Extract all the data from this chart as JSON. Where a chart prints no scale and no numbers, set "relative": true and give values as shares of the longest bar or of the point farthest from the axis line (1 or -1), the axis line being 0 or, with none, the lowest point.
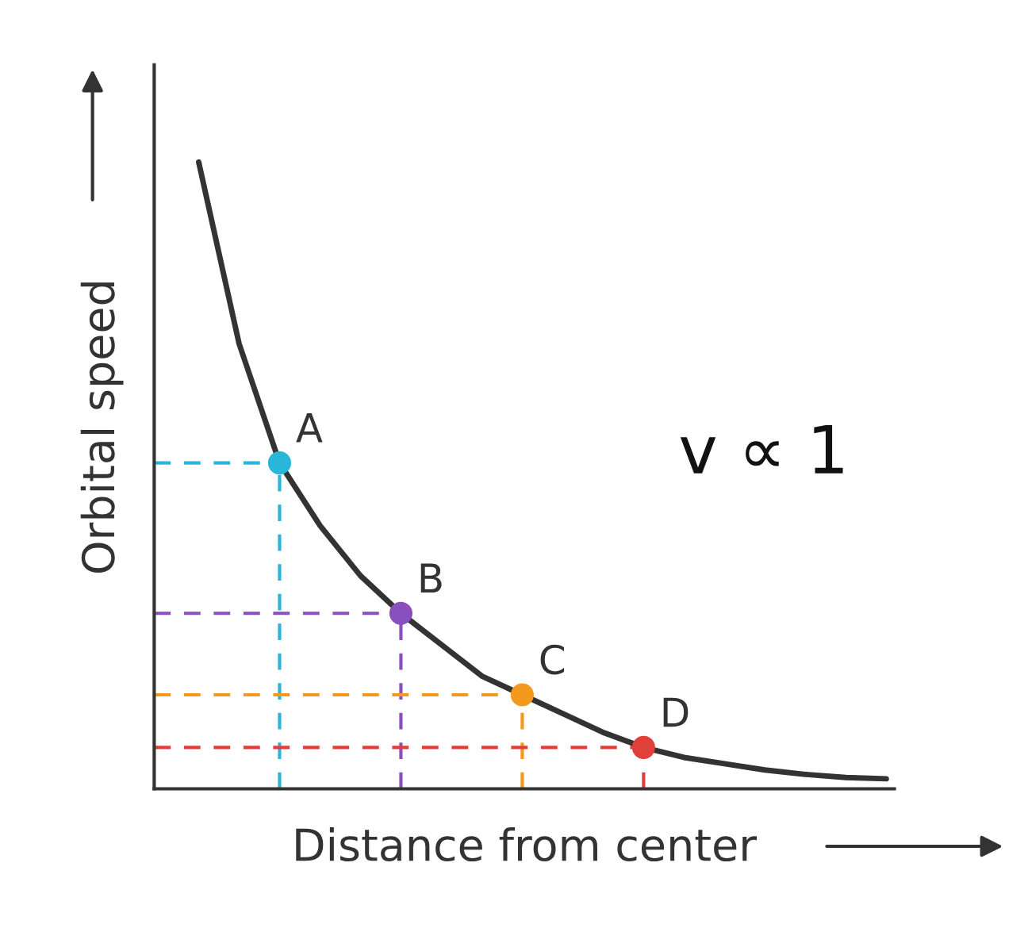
{
  "chart_data": {
    "type": "line",
    "relative": true,
    "xlabel": "Distance from center",
    "ylabel": "Orbital speed",
    "annotations": [
      "A",
      "B",
      "C",
      "D",
      "v ∝ 1"
    ],
    "categories": [
      null,
      null,
      null,
      null,
      null,
      null,
      null,
      null,
      null,
      null,
      null,
      null,
      null,
      null,
      null,
      null,
      null,
      null
    ],
    "series": [
      {
        "color": "#333333",
        "values": [
          1.0,
          0.71,
          0.52,
          0.42,
          0.34,
          0.28,
          0.23,
          0.18,
          0.15,
          0.12,
          0.09,
          0.066,
          0.05,
          0.04,
          0.03,
          0.023,
          0.018,
          0.016
        ],
        "colors": [
          null,
          null,
          "#29b6d8",
          null,
          null,
          "#8a4fbf",
          null,
          null,
          "#f39a1e",
          null,
          null,
          "#e0403a",
          null,
          null,
          null,
          null,
          null,
          null
        ]
      }
    ]
  }
}
